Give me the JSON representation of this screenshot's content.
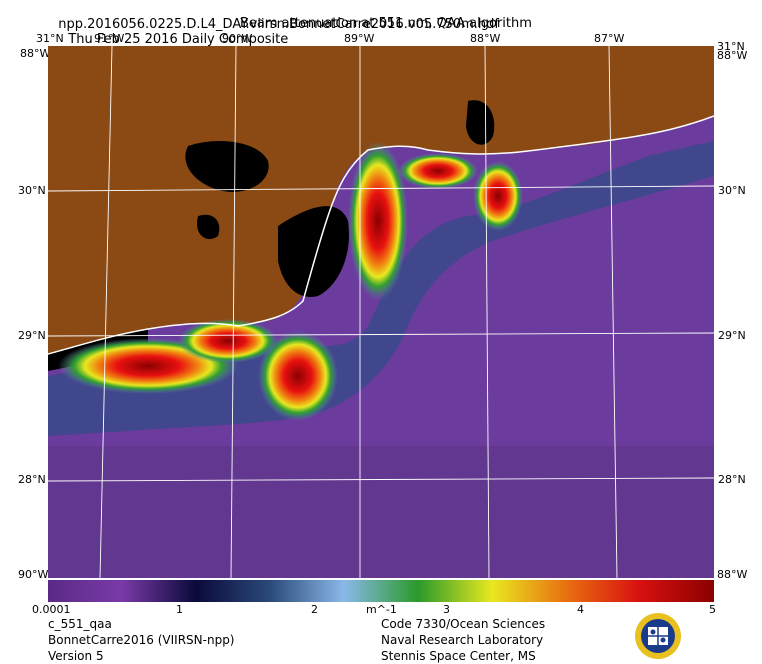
{
  "header": {
    "filename": "npp.2016056.0225.D.L4_DAY.viirsn.BonnetCarre2016.v05.750m.hdf",
    "composite": "Thu Feb 25 2016 Daily Composite",
    "subtitle": "Beam attenuation at 551 nm, QAA algorithm"
  },
  "map": {
    "top_lon_labels": [
      "91°W",
      "90°W",
      "89°W",
      "88°W",
      "87°W"
    ],
    "corner_top_left": "31°N",
    "corner_top_right": "31°N",
    "corner_left_b": "88°W",
    "corner_right_b": "88°W",
    "lat_labels_left": [
      "30°N",
      "29°N",
      "28°N"
    ],
    "lat_labels_right": [
      "30°N",
      "29°N",
      "28°N"
    ],
    "bottom_left": "90°W",
    "bottom_right": "88°W",
    "bottom_left2": "31°N",
    "bottom_right2": "31°N",
    "colors": {
      "land": "#8b4a14",
      "inland_water": "#000000",
      "offshore": "#6b3b9d",
      "coastline": "#ffffff"
    }
  },
  "colorbar": {
    "labels": [
      "0.0001",
      "1",
      "2",
      "m^-1",
      "3",
      "4",
      "5"
    ],
    "colors": [
      "#5a2a85",
      "#7a3aa8",
      "#0a0a3a",
      "#2a4a7a",
      "#8ab8e8",
      "#2a9a2a",
      "#e8e820",
      "#e87010",
      "#d81010",
      "#8a0000"
    ]
  },
  "footer": {
    "product": "c_551_qaa",
    "region": "BonnetCarre2016 (VIIRSN-npp)",
    "version": "Version 5",
    "org1": "Code 7330/Ocean Sciences",
    "org2": "Naval Research Laboratory",
    "org3": "Stennis Space Center, MS"
  }
}
